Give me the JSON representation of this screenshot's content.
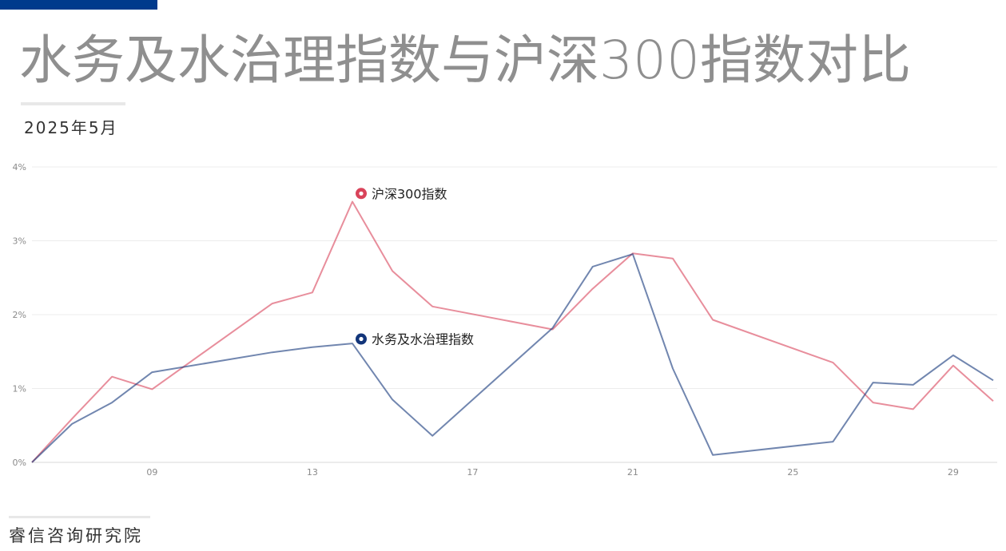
{
  "header": {
    "title": "水务及水治理指数与沪深300指数对比",
    "subtitle": "2025年5月"
  },
  "footer": {
    "source": "睿信咨询研究院"
  },
  "colors": {
    "accent_bar": "#003a8c",
    "hs300": "#d9435a",
    "water": "#12357a"
  },
  "chart_data": {
    "type": "line",
    "title": "水务及水治理指数与沪深300指数对比",
    "xlabel": "",
    "ylabel": "",
    "x": [
      6,
      7,
      8,
      9,
      12,
      13,
      14,
      15,
      16,
      19,
      20,
      21,
      22,
      23,
      26,
      27,
      28,
      29,
      30
    ],
    "x_ticks": [
      "09",
      "13",
      "17",
      "21",
      "25",
      "29"
    ],
    "x_tick_values": [
      9,
      13,
      17,
      21,
      25,
      29
    ],
    "xlim": [
      6,
      30.1
    ],
    "ylim": [
      0,
      4
    ],
    "y_ticks": [
      "0%",
      "1%",
      "2%",
      "3%",
      "4%"
    ],
    "y_tick_values": [
      0,
      1,
      2,
      3,
      4
    ],
    "grid": true,
    "series": [
      {
        "name": "沪深300指数",
        "color": "#d9435a",
        "values": [
          0,
          0.59,
          1.16,
          0.99,
          2.15,
          2.3,
          3.53,
          2.59,
          2.11,
          1.8,
          2.35,
          2.83,
          2.76,
          1.93,
          1.35,
          0.81,
          0.72,
          1.31,
          0.83
        ]
      },
      {
        "name": "水务及水治理指数",
        "color": "#12357a",
        "values": [
          0,
          0.52,
          0.81,
          1.22,
          1.49,
          1.56,
          1.61,
          0.85,
          0.36,
          1.82,
          2.65,
          2.82,
          1.27,
          0.1,
          0.28,
          1.08,
          1.05,
          1.45,
          1.11
        ]
      }
    ],
    "annotations": [
      {
        "series": 0,
        "text": "沪深300指数",
        "x": 14,
        "y": 3.64
      },
      {
        "series": 1,
        "text": "水务及水治理指数",
        "x": 14,
        "y": 1.67
      }
    ]
  }
}
